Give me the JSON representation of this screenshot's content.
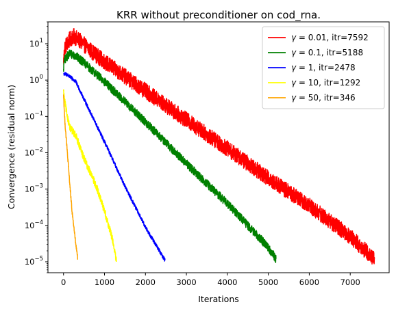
{
  "chart_data": {
    "type": "line",
    "title": "KRR without preconditioner on cod_rna.",
    "xlabel": "Iterations",
    "ylabel": "Convergence (residual norm)",
    "xlim": [
      -380,
      7950
    ],
    "ylim": [
      5e-06,
      40
    ],
    "yscale": "log",
    "grid": false,
    "legend_position": "top-right",
    "xticks": [
      0,
      1000,
      2000,
      3000,
      4000,
      5000,
      6000,
      7000
    ],
    "xtick_labels": [
      "0",
      "1000",
      "2000",
      "3000",
      "4000",
      "5000",
      "6000",
      "7000"
    ],
    "yticks": [
      1e-05,
      0.0001,
      0.001,
      0.01,
      0.1,
      1,
      10
    ],
    "ytick_labels": [
      {
        "base": "10",
        "exp": "−5"
      },
      {
        "base": "10",
        "exp": "−4"
      },
      {
        "base": "10",
        "exp": "−3"
      },
      {
        "base": "10",
        "exp": "−2"
      },
      {
        "base": "10",
        "exp": "−1"
      },
      {
        "base": "10",
        "exp": "0"
      },
      {
        "base": "10",
        "exp": "1"
      }
    ],
    "series": [
      {
        "name_prefix": "γ",
        "name_suffix": " = 0.01, itr=7592",
        "color": "#ff0000",
        "noise_decades": 0.22,
        "points": [
          [
            0,
            3
          ],
          [
            30,
            8
          ],
          [
            150,
            13
          ],
          [
            250,
            16
          ],
          [
            400,
            12
          ],
          [
            700,
            6
          ],
          [
            1000,
            3.2
          ],
          [
            2000,
            0.5
          ],
          [
            3000,
            0.08
          ],
          [
            4000,
            0.013
          ],
          [
            5000,
            0.002
          ],
          [
            6000,
            0.00035
          ],
          [
            7000,
            5e-05
          ],
          [
            7592,
            1.2e-05
          ]
        ]
      },
      {
        "name_prefix": "γ",
        "name_suffix": " = 0.1, itr=5188",
        "color": "#008000",
        "noise_decades": 0.12,
        "points": [
          [
            0,
            2
          ],
          [
            20,
            3.5
          ],
          [
            150,
            5.5
          ],
          [
            300,
            4.6
          ],
          [
            500,
            3
          ],
          [
            1000,
            0.9
          ],
          [
            2000,
            0.07
          ],
          [
            3000,
            0.005
          ],
          [
            4000,
            0.0004
          ],
          [
            5000,
            2.5e-05
          ],
          [
            5188,
            1.2e-05
          ]
        ]
      },
      {
        "name_prefix": "γ",
        "name_suffix": " = 1, itr=2478",
        "color": "#0000ff",
        "noise_decades": 0.05,
        "points": [
          [
            0,
            1.5
          ],
          [
            100,
            1.4
          ],
          [
            300,
            0.9
          ],
          [
            500,
            0.3
          ],
          [
            1000,
            0.02
          ],
          [
            1500,
            0.0012
          ],
          [
            2000,
            9e-05
          ],
          [
            2478,
            1.1e-05
          ]
        ]
      },
      {
        "name_prefix": "γ",
        "name_suffix": " = 10, itr=1292",
        "color": "#ffff00",
        "noise_decades": 0.1,
        "points": [
          [
            0,
            0.5
          ],
          [
            20,
            0.3
          ],
          [
            80,
            0.12
          ],
          [
            150,
            0.05
          ],
          [
            300,
            0.03
          ],
          [
            500,
            0.007
          ],
          [
            800,
            0.0012
          ],
          [
            1000,
            0.00025
          ],
          [
            1200,
            4e-05
          ],
          [
            1292,
            1e-05
          ]
        ]
      },
      {
        "name_prefix": "γ",
        "name_suffix": " = 50, itr=346",
        "color": "#ffa500",
        "noise_decades": 0.07,
        "points": [
          [
            0,
            0.4
          ],
          [
            30,
            0.08
          ],
          [
            100,
            0.008
          ],
          [
            200,
            0.0003
          ],
          [
            300,
            3e-05
          ],
          [
            346,
            1.2e-05
          ]
        ]
      }
    ]
  }
}
